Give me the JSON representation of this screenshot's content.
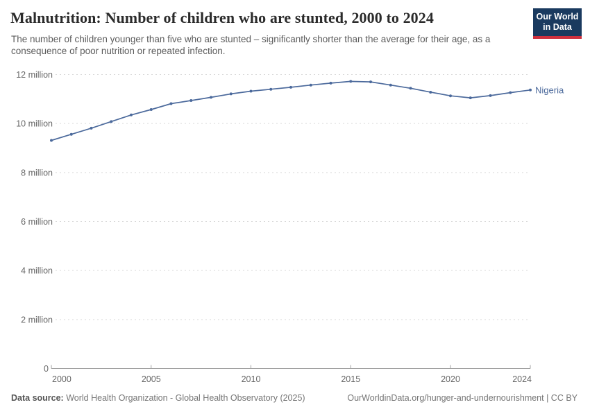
{
  "header": {
    "title": "Malnutrition: Number of children who are stunted, 2000 to 2024",
    "subtitle": "The number of children younger than five who are stunted – significantly shorter than the average for their age, as a consequence of poor nutrition or repeated infection."
  },
  "logo": {
    "line1": "Our World",
    "line2": "in Data",
    "bg_color": "#1a3a5f",
    "bar_color": "#cf303e"
  },
  "chart_data": {
    "type": "line",
    "title": "Malnutrition: Number of children who are stunted, 2000 to 2024",
    "unit": "children (millions)",
    "x": [
      2000,
      2001,
      2002,
      2003,
      2004,
      2005,
      2006,
      2007,
      2008,
      2009,
      2010,
      2011,
      2012,
      2013,
      2014,
      2015,
      2016,
      2017,
      2018,
      2019,
      2020,
      2021,
      2022,
      2023,
      2024
    ],
    "series": [
      {
        "name": "Nigeria",
        "values_millions": [
          9.31,
          9.56,
          9.81,
          10.08,
          10.35,
          10.57,
          10.81,
          10.94,
          11.07,
          11.21,
          11.32,
          11.4,
          11.48,
          11.57,
          11.65,
          11.72,
          11.7,
          11.57,
          11.44,
          11.28,
          11.13,
          11.05,
          11.14,
          11.26,
          11.37
        ]
      }
    ],
    "ylim": [
      0,
      12
    ],
    "y_ticks": [
      {
        "v": 0,
        "label": "0"
      },
      {
        "v": 2,
        "label": "2 million"
      },
      {
        "v": 4,
        "label": "4 million"
      },
      {
        "v": 6,
        "label": "6 million"
      },
      {
        "v": 8,
        "label": "8 million"
      },
      {
        "v": 10,
        "label": "10 million"
      },
      {
        "v": 12,
        "label": "12 million"
      }
    ],
    "x_ticks": [
      2000,
      2005,
      2010,
      2015,
      2020,
      2024
    ],
    "grid": "dashed horizontal",
    "legend_position": "end-of-line label",
    "end_label": "Nigeria",
    "colors": {
      "line": "#4c6a9c",
      "grid": "#d9d9d9",
      "axis": "#a1a1a1",
      "tick_text": "#666666"
    }
  },
  "footer": {
    "source_label": "Data source:",
    "source_text": " World Health Organization - Global Health Observatory (2025)",
    "link_text": "OurWorldinData.org/hunger-and-undernourishment | CC BY"
  }
}
